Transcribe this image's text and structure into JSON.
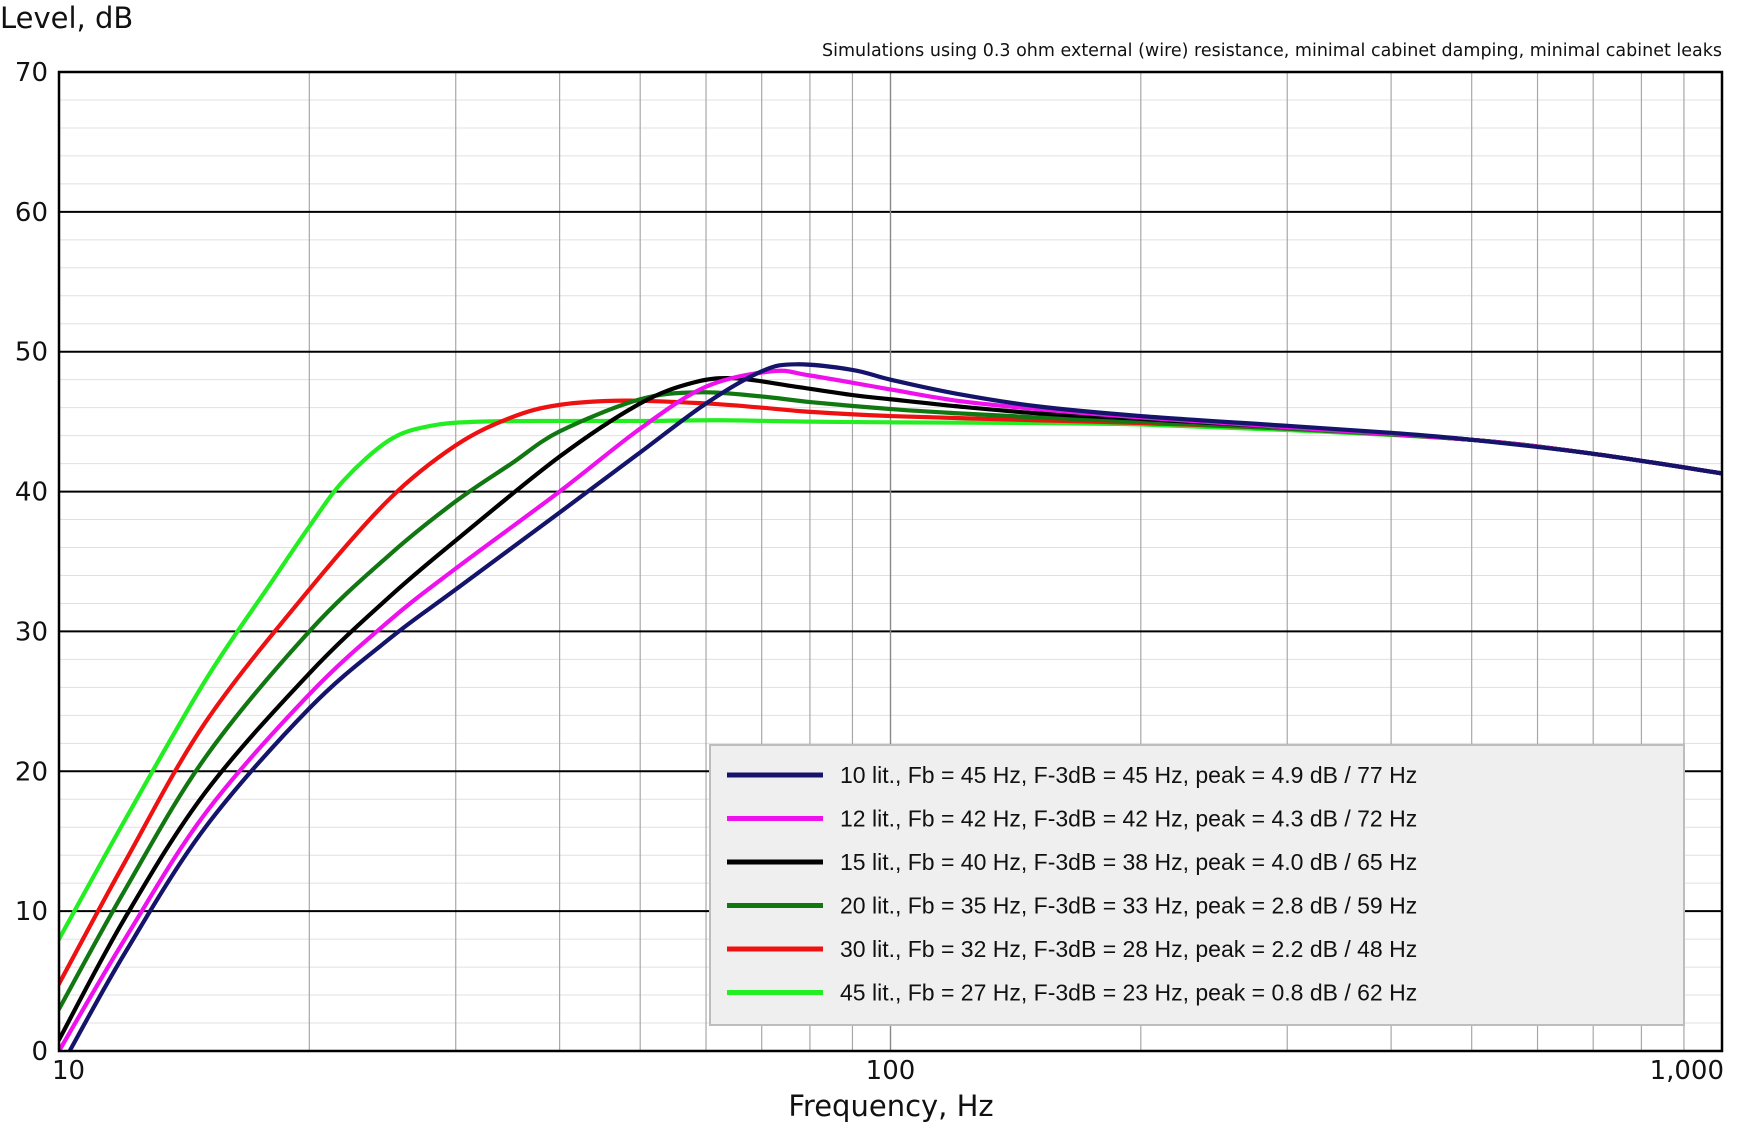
{
  "chart_data": {
    "type": "line",
    "title": "",
    "subtitle": "Simulations using 0.3 ohm external (wire) resistance, minimal cabinet damping, minimal cabinet leaks",
    "xlabel": "Frequency, Hz",
    "ylabel": "Level, dB",
    "xscale": "log",
    "xlim": [
      10,
      1000
    ],
    "ylim": [
      0,
      70
    ],
    "x_ticks": [
      10,
      100,
      1000
    ],
    "x_tick_labels": [
      "10",
      "100",
      "1,000"
    ],
    "y_ticks": [
      0,
      10,
      20,
      30,
      40,
      50,
      60,
      70
    ],
    "y_tick_labels": [
      "0",
      "10",
      "20",
      "30",
      "40",
      "50",
      "60",
      "70"
    ],
    "grid": true,
    "legend_position": "bottom-right",
    "series": [
      {
        "name": "10 lit., Fb = 45 Hz, F-3dB = 45 Hz, peak = 4.9 dB / 77 Hz",
        "color": "#14146b",
        "points": [
          [
            10.3,
            0
          ],
          [
            12,
            7
          ],
          [
            15,
            16
          ],
          [
            20,
            24.5
          ],
          [
            25,
            29.5
          ],
          [
            30,
            33
          ],
          [
            40,
            38.5
          ],
          [
            50,
            42.8
          ],
          [
            60,
            46.3
          ],
          [
            70,
            48.6
          ],
          [
            77,
            49.1
          ],
          [
            90,
            48.7
          ],
          [
            100,
            48
          ],
          [
            120,
            47
          ],
          [
            150,
            46.1
          ],
          [
            200,
            45.4
          ],
          [
            300,
            44.7
          ],
          [
            400,
            44.2
          ],
          [
            500,
            43.7
          ],
          [
            700,
            42.7
          ],
          [
            1000,
            41.3
          ]
        ]
      },
      {
        "name": "12 lit., Fb = 42 Hz, F-3dB = 42 Hz, peak = 4.3 dB / 72 Hz",
        "color": "#ee11ee",
        "points": [
          [
            10,
            0
          ],
          [
            12,
            8
          ],
          [
            15,
            17
          ],
          [
            20,
            25.5
          ],
          [
            25,
            30.8
          ],
          [
            30,
            34.5
          ],
          [
            40,
            40
          ],
          [
            50,
            44.5
          ],
          [
            60,
            47.5
          ],
          [
            72,
            48.6
          ],
          [
            80,
            48.3
          ],
          [
            100,
            47.3
          ],
          [
            120,
            46.5
          ],
          [
            150,
            45.9
          ],
          [
            200,
            45.3
          ],
          [
            300,
            44.6
          ],
          [
            500,
            43.7
          ],
          [
            700,
            42.7
          ],
          [
            1000,
            41.3
          ]
        ]
      },
      {
        "name": "15 lit., Fb = 40 Hz, F-3dB = 38 Hz, peak = 4.0 dB / 65 Hz",
        "color": "#000000",
        "points": [
          [
            10,
            0.8
          ],
          [
            12,
            9.5
          ],
          [
            15,
            18.5
          ],
          [
            20,
            27
          ],
          [
            25,
            32.5
          ],
          [
            30,
            36.5
          ],
          [
            40,
            42.5
          ],
          [
            50,
            46.3
          ],
          [
            58,
            47.8
          ],
          [
            65,
            48.1
          ],
          [
            75,
            47.6
          ],
          [
            90,
            46.9
          ],
          [
            100,
            46.6
          ],
          [
            120,
            46.1
          ],
          [
            150,
            45.6
          ],
          [
            200,
            45.2
          ],
          [
            300,
            44.6
          ],
          [
            500,
            43.7
          ],
          [
            700,
            42.7
          ],
          [
            1000,
            41.3
          ]
        ]
      },
      {
        "name": "20 lit., Fb = 35 Hz, F-3dB = 33 Hz, peak = 2.8 dB / 59 Hz",
        "color": "#117711",
        "points": [
          [
            10,
            3
          ],
          [
            12,
            11.5
          ],
          [
            15,
            21
          ],
          [
            20,
            30
          ],
          [
            25,
            35.5
          ],
          [
            30,
            39.3
          ],
          [
            35,
            42
          ],
          [
            40,
            44.3
          ],
          [
            50,
            46.6
          ],
          [
            59,
            47.1
          ],
          [
            70,
            46.8
          ],
          [
            80,
            46.4
          ],
          [
            100,
            45.9
          ],
          [
            120,
            45.6
          ],
          [
            150,
            45.3
          ],
          [
            200,
            45
          ],
          [
            300,
            44.5
          ],
          [
            500,
            43.7
          ],
          [
            700,
            42.7
          ],
          [
            1000,
            41.3
          ]
        ]
      },
      {
        "name": "30 lit., Fb = 32 Hz, F-3dB = 28 Hz, peak = 2.2 dB / 48 Hz",
        "color": "#ee1111",
        "points": [
          [
            10,
            4.8
          ],
          [
            12,
            13.5
          ],
          [
            15,
            23.5
          ],
          [
            20,
            33
          ],
          [
            25,
            39.5
          ],
          [
            30,
            43.3
          ],
          [
            35,
            45.3
          ],
          [
            40,
            46.2
          ],
          [
            48,
            46.5
          ],
          [
            60,
            46.3
          ],
          [
            70,
            46
          ],
          [
            80,
            45.7
          ],
          [
            100,
            45.4
          ],
          [
            150,
            45.1
          ],
          [
            200,
            44.9
          ],
          [
            300,
            44.5
          ],
          [
            500,
            43.7
          ],
          [
            700,
            42.7
          ],
          [
            1000,
            41.3
          ]
        ]
      },
      {
        "name": "45 lit., Fb = 27 Hz, F-3dB = 23 Hz, peak = 0.8 dB / 62 Hz",
        "color": "#22ee22",
        "points": [
          [
            10,
            8
          ],
          [
            12,
            16.5
          ],
          [
            15,
            26.5
          ],
          [
            18,
            33.5
          ],
          [
            20,
            37.5
          ],
          [
            22,
            40.8
          ],
          [
            25,
            43.7
          ],
          [
            28,
            44.7
          ],
          [
            32,
            45
          ],
          [
            40,
            45.05
          ],
          [
            50,
            45.05
          ],
          [
            62,
            45.1
          ],
          [
            80,
            45
          ],
          [
            100,
            44.95
          ],
          [
            150,
            44.9
          ],
          [
            200,
            44.8
          ],
          [
            300,
            44.4
          ],
          [
            500,
            43.7
          ],
          [
            700,
            42.7
          ],
          [
            1000,
            41.3
          ]
        ]
      }
    ]
  }
}
